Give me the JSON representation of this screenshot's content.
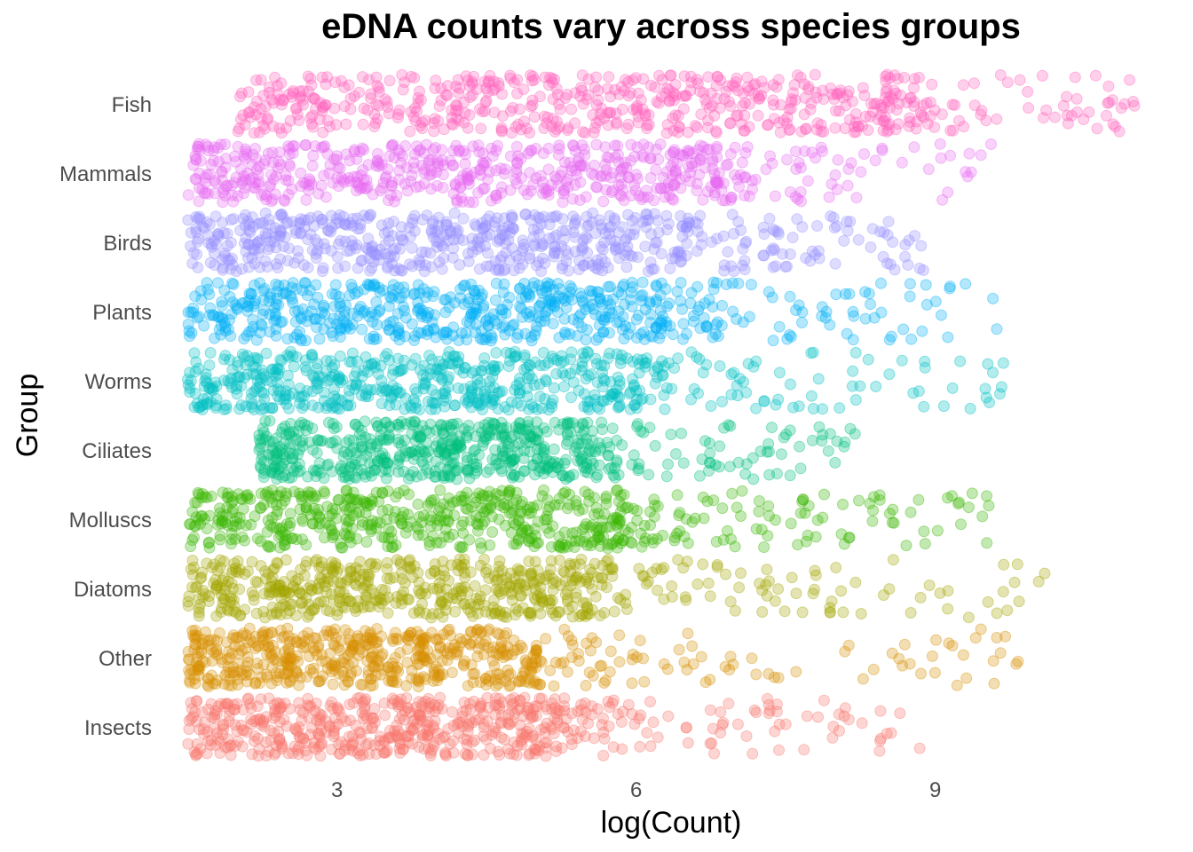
{
  "chart_data": {
    "type": "scatter",
    "subtype": "jitter strip plot",
    "title": "eDNA counts vary across species groups",
    "xlabel": "log(Count)",
    "ylabel": "Group",
    "x_ticks": [
      3,
      6,
      9
    ],
    "xlim": [
      1.4,
      11.3
    ],
    "grid": false,
    "legend": "none",
    "point_alpha": 0.3,
    "categories": [
      "Insects",
      "Other",
      "Diatoms",
      "Molluscs",
      "Ciliates",
      "Worms",
      "Plants",
      "Birds",
      "Mammals",
      "Fish"
    ],
    "series": [
      {
        "name": "Insects",
        "color": "#F8766D",
        "n_points": 600,
        "x_range": [
          1.5,
          8.9
        ],
        "dense_range": [
          1.5,
          5.2
        ]
      },
      {
        "name": "Other",
        "color": "#D89000",
        "n_points": 600,
        "x_range": [
          1.5,
          10.0
        ],
        "dense_range": [
          1.5,
          5.0
        ]
      },
      {
        "name": "Diatoms",
        "color": "#A3A500",
        "n_points": 600,
        "x_range": [
          1.5,
          10.1
        ],
        "dense_range": [
          1.5,
          5.5
        ]
      },
      {
        "name": "Molluscs",
        "color": "#39B600",
        "n_points": 600,
        "x_range": [
          1.5,
          9.6
        ],
        "dense_range": [
          1.5,
          5.8
        ]
      },
      {
        "name": "Ciliates",
        "color": "#00BF7D",
        "n_points": 600,
        "x_range": [
          1.5,
          8.2
        ],
        "dense_range": [
          2.2,
          5.5
        ]
      },
      {
        "name": "Worms",
        "color": "#00BFC4",
        "n_points": 600,
        "x_range": [
          1.5,
          9.7
        ],
        "dense_range": [
          1.5,
          6.0
        ]
      },
      {
        "name": "Plants",
        "color": "#00B0F6",
        "n_points": 600,
        "x_range": [
          1.5,
          9.7
        ],
        "dense_range": [
          1.5,
          6.2
        ]
      },
      {
        "name": "Birds",
        "color": "#9590FF",
        "n_points": 600,
        "x_range": [
          1.5,
          9.0
        ],
        "dense_range": [
          1.5,
          6.5
        ]
      },
      {
        "name": "Mammals",
        "color": "#E76BF3",
        "n_points": 600,
        "x_range": [
          1.5,
          9.7
        ],
        "dense_range": [
          1.5,
          6.8
        ]
      },
      {
        "name": "Fish",
        "color": "#FF62BC",
        "n_points": 600,
        "x_range": [
          1.5,
          11.1
        ],
        "dense_range": [
          2.0,
          8.5
        ]
      }
    ]
  }
}
